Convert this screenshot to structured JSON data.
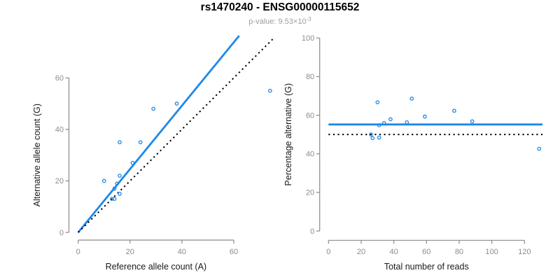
{
  "header": {
    "title": "rs1470240 - ENSG00000115652",
    "subtitle_prefix": "p-value: ",
    "p_value_base": "9.53×10",
    "p_value_exponent": "-3"
  },
  "colors": {
    "accent_blue": "#1E87E8",
    "dotted_black": "#000000",
    "axis_line_gray": "#8a8a8a",
    "tick_label_gray": "#8c8c8c",
    "axis_title_color": "#1a1a1a"
  },
  "chart_data": [
    {
      "type": "scatter",
      "panel": "left",
      "xlabel": "Reference allele count (A)",
      "ylabel": "Alternative allele count (G)",
      "xlim": [
        0,
        75
      ],
      "ylim": [
        0,
        76
      ],
      "xticks": [
        0,
        20,
        40,
        60
      ],
      "yticks": [
        0,
        20,
        40,
        60
      ],
      "grid": false,
      "legend": "none",
      "points": [
        [
          10,
          20
        ],
        [
          13,
          13
        ],
        [
          14,
          13
        ],
        [
          14,
          17
        ],
        [
          16,
          15
        ],
        [
          15,
          19
        ],
        [
          16,
          22
        ],
        [
          16,
          35
        ],
        [
          21,
          27
        ],
        [
          24,
          35
        ],
        [
          29,
          48
        ],
        [
          38,
          50
        ],
        [
          74,
          55
        ]
      ],
      "lines": [
        {
          "id": "fit-line",
          "style": "solid",
          "color": "#1E87E8",
          "slope": 1.23,
          "intercept": 0
        },
        {
          "id": "identity-line",
          "style": "dotted",
          "color": "#000000",
          "slope": 1,
          "intercept": 0
        }
      ]
    },
    {
      "type": "scatter",
      "panel": "right",
      "xlabel": "Total number of reads",
      "ylabel": "Percentage alternative (G)",
      "xlim": [
        0,
        131
      ],
      "ylim": [
        0,
        100
      ],
      "xticks": [
        0,
        20,
        40,
        60,
        80,
        100,
        120
      ],
      "yticks": [
        0,
        20,
        40,
        60,
        80,
        100
      ],
      "grid": false,
      "legend": "none",
      "points": [
        [
          30,
          66.7
        ],
        [
          26,
          50.0
        ],
        [
          27,
          48.1
        ],
        [
          31,
          54.8
        ],
        [
          31,
          48.4
        ],
        [
          34,
          55.9
        ],
        [
          38,
          57.9
        ],
        [
          51,
          68.6
        ],
        [
          48,
          56.3
        ],
        [
          59,
          59.3
        ],
        [
          77,
          62.3
        ],
        [
          88,
          56.8
        ],
        [
          129,
          42.6
        ]
      ],
      "lines": [
        {
          "id": "mean-percentage-line",
          "style": "solid",
          "color": "#1E87E8",
          "hline": 55.2
        },
        {
          "id": "fifty-percent-line",
          "style": "dotted",
          "color": "#000000",
          "hline": 50
        }
      ]
    }
  ]
}
